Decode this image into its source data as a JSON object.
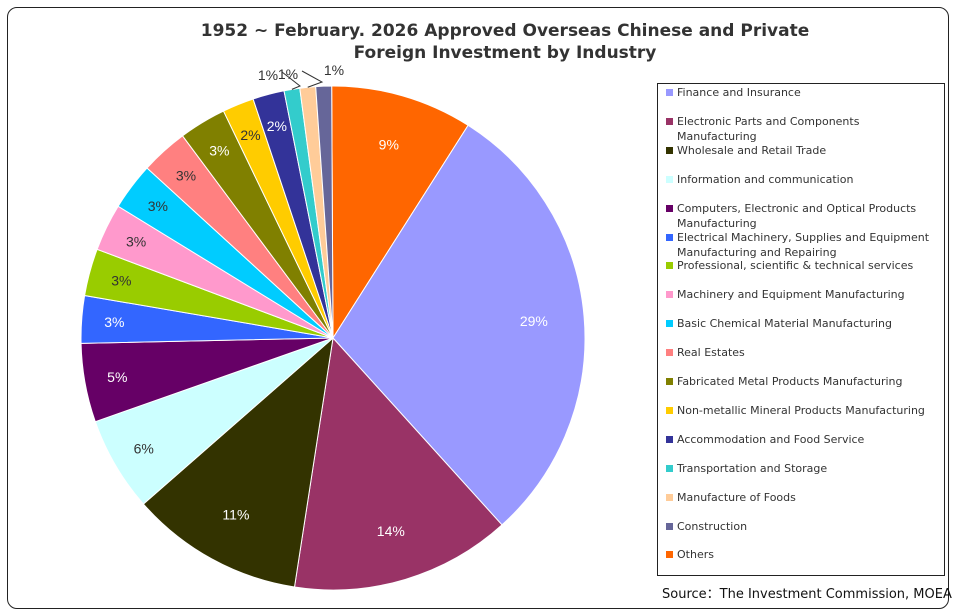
{
  "chart_data": {
    "type": "pie",
    "title": "1952 ~  February. 2026 Approved Overseas Chinese and Private Foreign Investment by Industry",
    "title_lines": [
      "1952 ~  February. 2026 Approved Overseas Chinese and Private",
      "Foreign Investment by Industry"
    ],
    "legend_position": "right",
    "slices": [
      {
        "label": "Finance and Insurance",
        "value": 29,
        "display": "29%",
        "color": "#9999FF",
        "label_color": "#ffffff"
      },
      {
        "label": "Electronic Parts and Components Manufacturing",
        "value": 14,
        "display": "14%",
        "color": "#993366",
        "label_color": "#ffffff"
      },
      {
        "label": "Wholesale and Retail Trade",
        "value": 11,
        "display": "11%",
        "color": "#333300",
        "label_color": "#ffffff"
      },
      {
        "label": "Information and communication",
        "value": 6,
        "display": "6%",
        "color": "#CCFFFF",
        "label_color": "#333333"
      },
      {
        "label": "Computers, Electronic and Optical Products Manufacturing",
        "value": 5,
        "display": "5%",
        "color": "#660066",
        "label_color": "#ffffff"
      },
      {
        "label": "Electrical Machinery, Supplies and Equipment Manufacturing and Repairing",
        "value": 3,
        "display": "3%",
        "color": "#3366FF",
        "label_color": "#ffffff"
      },
      {
        "label": "Professional, scientific & technical services",
        "value": 3,
        "display": "3%",
        "color": "#99CC00",
        "label_color": "#333333"
      },
      {
        "label": "Machinery and Equipment Manufacturing",
        "value": 3,
        "display": "3%",
        "color": "#FF99CC",
        "label_color": "#333333"
      },
      {
        "label": "Basic Chemical Material Manufacturing",
        "value": 3,
        "display": "3%",
        "color": "#00CCFF",
        "label_color": "#333333"
      },
      {
        "label": "Real Estates",
        "value": 3,
        "display": "3%",
        "color": "#FF8080",
        "label_color": "#333333"
      },
      {
        "label": "Fabricated Metal Products Manufacturing",
        "value": 3,
        "display": "3%",
        "color": "#808000",
        "label_color": "#ffffff"
      },
      {
        "label": "Non-metallic Mineral Products Manufacturing",
        "value": 2,
        "display": "2%",
        "color": "#FFCC00",
        "label_color": "#333333"
      },
      {
        "label": "Accommodation and Food Service",
        "value": 2,
        "display": "2%",
        "color": "#333399",
        "label_color": "#ffffff"
      },
      {
        "label": "Transportation and Storage",
        "value": 1,
        "display": "1%",
        "color": "#33CCCC",
        "label_color": "#333333"
      },
      {
        "label": "Manufacture of Foods",
        "value": 1,
        "display": "1%",
        "color": "#FFCC99",
        "label_color": "#333333"
      },
      {
        "label": "Construction",
        "value": 1,
        "display": "1%",
        "color": "#666699",
        "label_color": "#333333"
      },
      {
        "label": "Others",
        "value": 9,
        "display": "9%",
        "color": "#FF6600",
        "label_color": "#ffffff"
      }
    ]
  },
  "source": "Source：The Investment Commission, MOEA"
}
